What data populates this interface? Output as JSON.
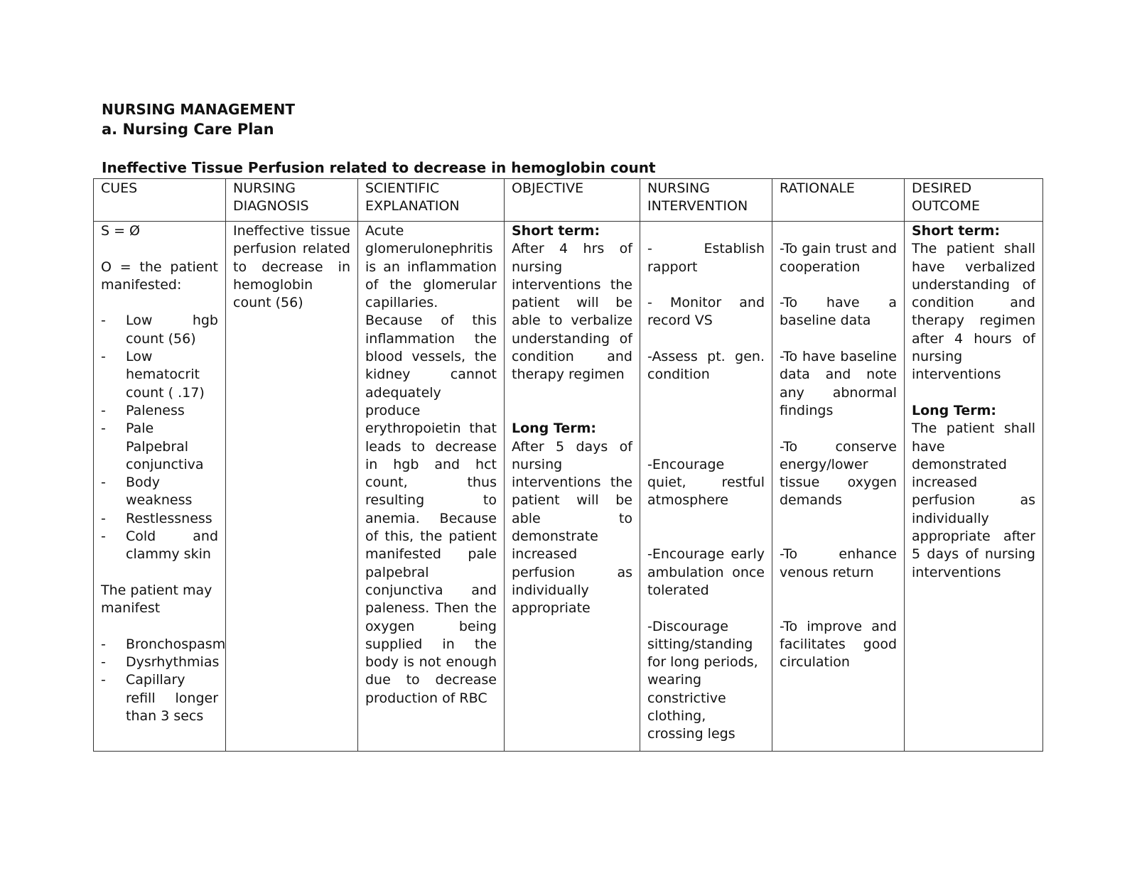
{
  "title": "NURSING MANAGEMENT",
  "subtitle": "a. Nursing Care Plan",
  "plan_title": "Ineffective Tissue Perfusion related to decrease in hemoglobin count",
  "headers": [
    "CUES",
    "NURSING DIAGNOSIS",
    "SCIENTIFIC EXPLANATION",
    "OBJECTIVE",
    "NURSING INTERVENTION",
    "RATIONALE",
    "DESIRED OUTCOME"
  ],
  "cues": {
    "subjective": "S = Ø",
    "objective": "O = the patient manifested:",
    "manifested": [
      "Low hgb count (56)",
      "Low hematocrit count ( .17)",
      "Paleness",
      "Pale Palpebral conjunctiva",
      "Body weakness",
      "Restlessness",
      "Cold and clammy skin"
    ],
    "may_manifest": "The patient may manifest",
    "possible": [
      "Bronchospasm",
      "Dysrhythmias",
      "Capillary refill longer than 3 secs"
    ]
  },
  "diagnosis": "Ineffective tissue perfusion related to decrease in hemoglobin count (56)",
  "explanation": "Acute glomerulonephritis is an inflammation of the glomerular capillaries. Because of this inflammation the blood vessels, the kidney cannot adequately produce erythropoietin that leads to decrease in hgb and hct count, thus resulting to anemia. Because of this, the patient manifested pale palpebral conjunctiva and paleness. Then the oxygen being supplied in the body is not enough due to decrease production of RBC",
  "objective": {
    "short_label": "Short term:",
    "short": "After 4 hrs of nursing interventions the patient will be able to verbalize understanding of condition and therapy regimen",
    "long_label": "Long Term:",
    "long": "After 5 days of nursing interventions the patient will be able to demonstrate increased perfusion as individually appropriate"
  },
  "interventions": [
    "- Establish rapport",
    "- Monitor and record VS",
    "-Assess pt. gen. condition",
    "-Encourage quiet, restful atmosphere",
    "-Encourage early ambulation once tolerated",
    "-Discourage sitting/standing for long periods, wearing constrictive clothing, crossing legs"
  ],
  "rationale": [
    "-To gain trust and cooperation",
    "-To have a baseline data",
    "-To have baseline data and note any abnormal findings",
    "-To conserve energy/lower tissue oxygen demands",
    "-To enhance venous return",
    "-To improve and facilitates good circulation"
  ],
  "outcome": {
    "short_label": "Short term:",
    "short": "The patient shall have verbalized understanding of condition and therapy regimen after 4 hours of nursing interventions",
    "long_label": "Long Term:",
    "long": "The patient shall have demonstrated increased perfusion as individually appropriate after 5 days of nursing interventions"
  }
}
